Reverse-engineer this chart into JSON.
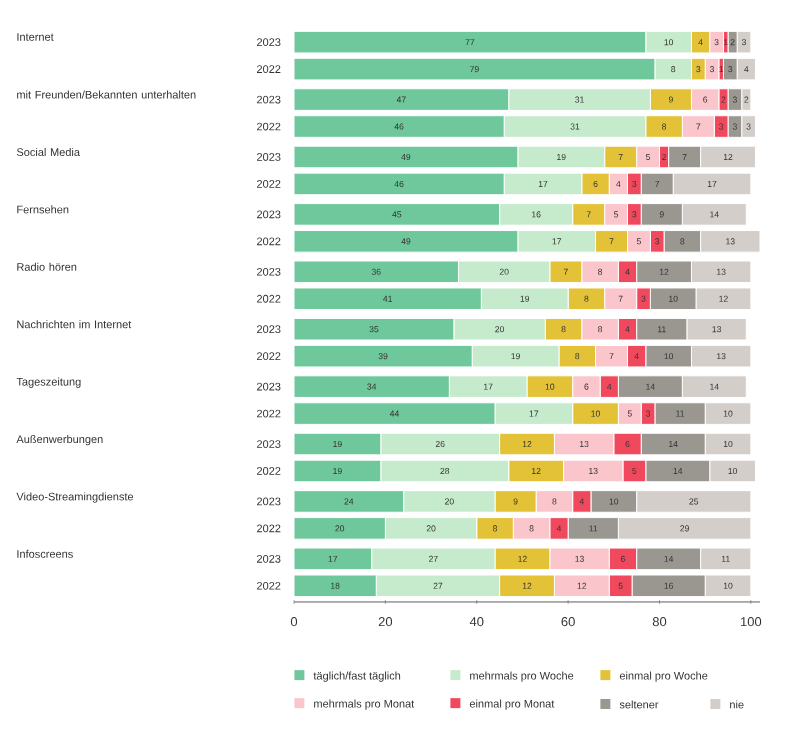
{
  "chart_data": {
    "type": "bar",
    "orientation": "horizontal",
    "stacked": true,
    "data_labels": true,
    "legend": "bottom",
    "xlim": [
      0,
      102
    ],
    "xticks": [
      0,
      20,
      40,
      60,
      80,
      100
    ],
    "categories": [
      "2023",
      "2022",
      "2023",
      "2022",
      "2023",
      "2022",
      "2023",
      "2022",
      "2023",
      "2022",
      "2023",
      "2022",
      "2023",
      "2022",
      "2023",
      "2022",
      "2023",
      "2022",
      "2023",
      "2022"
    ],
    "annotations": [
      "Internet",
      "mit Freunden/Bekannten unterhalten",
      "Social Media",
      "Fernsehen",
      "Radio hören",
      "Nachrichten im Internet",
      "Tageszeitung",
      "Außenwerbungen",
      "Video-Streamingdienste",
      "Infoscreens"
    ],
    "series": [
      {
        "name": "täglich/fast täglich",
        "color": "#6ec89b",
        "values": [
          77,
          79,
          47,
          46,
          49,
          46,
          45,
          49,
          36,
          41,
          35,
          39,
          34,
          44,
          19,
          19,
          24,
          20,
          17,
          18
        ]
      },
      {
        "name": "mehrmals pro Woche",
        "color": "#c6ebcc",
        "values": [
          10,
          8,
          31,
          31,
          19,
          17,
          16,
          17,
          20,
          19,
          20,
          19,
          17,
          17,
          26,
          28,
          20,
          20,
          27,
          27
        ]
      },
      {
        "name": "einmal pro Woche",
        "color": "#e3c238",
        "values": [
          4,
          3,
          9,
          8,
          7,
          6,
          7,
          7,
          7,
          8,
          8,
          8,
          10,
          10,
          12,
          12,
          9,
          8,
          12,
          12
        ]
      },
      {
        "name": "mehrmals pro Monat",
        "color": "#fbc5cc",
        "values": [
          3,
          3,
          6,
          7,
          5,
          4,
          5,
          5,
          8,
          7,
          8,
          7,
          6,
          5,
          13,
          13,
          8,
          8,
          13,
          12
        ]
      },
      {
        "name": "einmal pro Monat",
        "color": "#f0495e",
        "values": [
          1,
          1,
          2,
          3,
          2,
          3,
          3,
          3,
          4,
          3,
          4,
          4,
          4,
          3,
          6,
          5,
          4,
          4,
          6,
          5
        ]
      },
      {
        "name": "seltener",
        "color": "#9a9791",
        "values": [
          2,
          3,
          3,
          3,
          7,
          7,
          9,
          8,
          12,
          10,
          11,
          10,
          14,
          11,
          14,
          14,
          10,
          11,
          14,
          16
        ]
      },
      {
        "name": "nie",
        "color": "#d3ceca",
        "values": [
          3,
          4,
          2,
          3,
          12,
          17,
          14,
          13,
          13,
          12,
          13,
          13,
          14,
          10,
          10,
          10,
          25,
          29,
          11,
          10
        ]
      }
    ]
  }
}
